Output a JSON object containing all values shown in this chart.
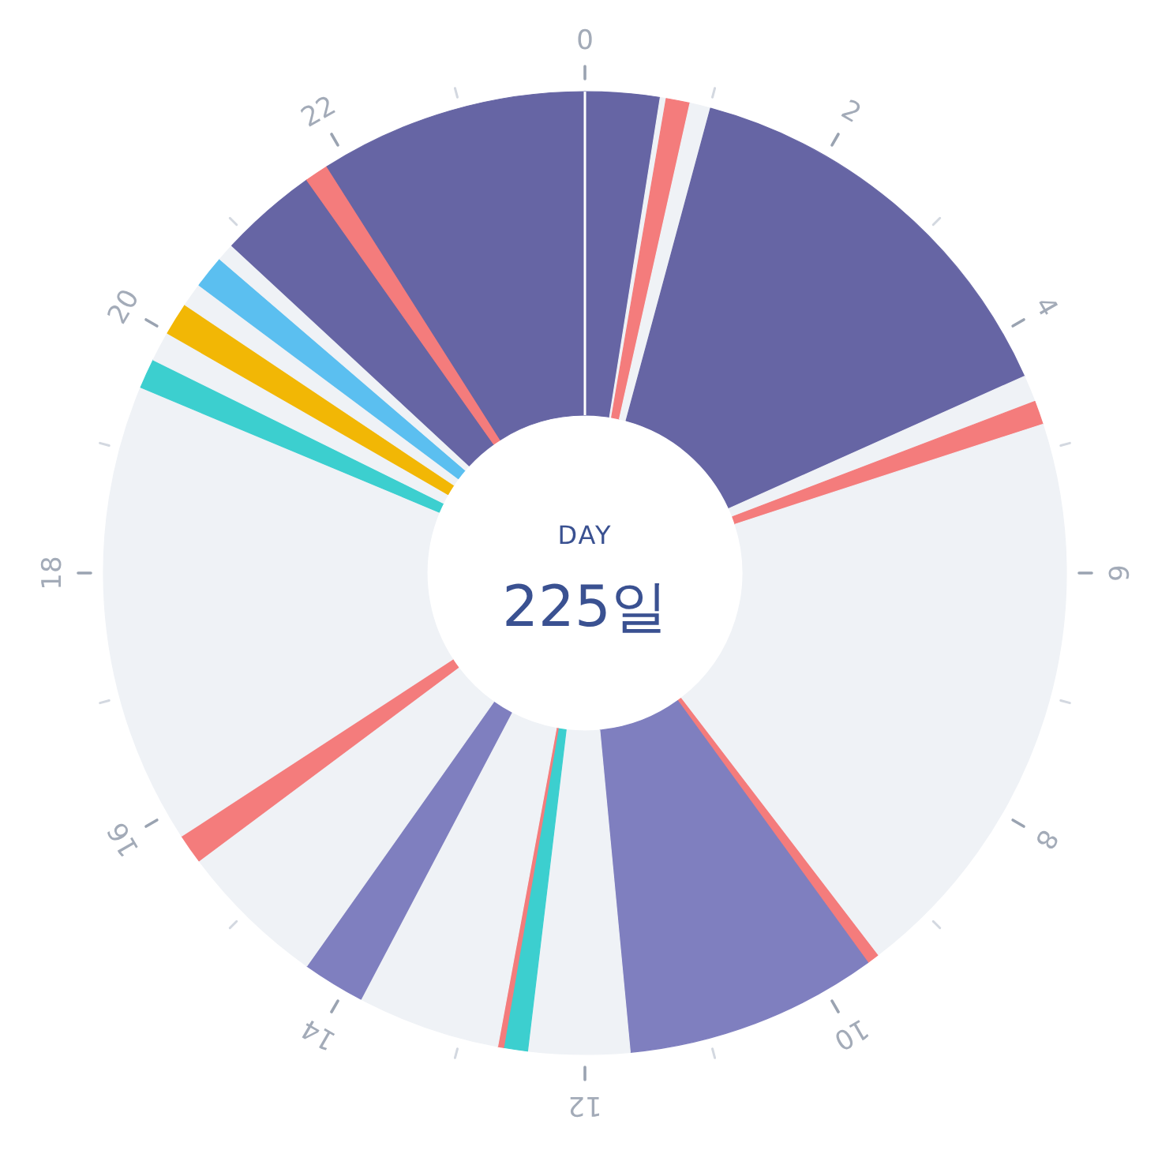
{
  "chart_data": {
    "type": "donut",
    "title": "DAY",
    "subtitle": "225일",
    "categories": [
      null,
      null,
      null,
      null,
      null,
      null,
      null,
      null,
      null,
      null,
      null,
      null,
      null,
      null,
      null,
      null,
      null,
      null,
      null,
      null,
      null,
      null,
      null,
      null,
      null,
      null,
      null
    ],
    "values": [
      2.5,
      0.2,
      0.8,
      0.7,
      14.1,
      0.9,
      0.8,
      19.6,
      0.4,
      8.5,
      3.4,
      0.8,
      0.2,
      4.8,
      2.1,
      5.0,
      1.0,
      15.5,
      1.0,
      1.0,
      1.1,
      0.8,
      1.1,
      0.6,
      3.3,
      0.8,
      9.0
    ],
    "colors": [
      "#6665a4",
      "#eff2f6",
      "#f47c7c",
      "#eff2f6",
      "#6665a4",
      "#eff2f6",
      "#f47c7c",
      "#eff2f6",
      "#f47c7c",
      "#7f7fbf",
      "#eff2f6",
      "#3ccfcf",
      "#f47c7c",
      "#eff2f6",
      "#7f7fbf",
      "#eff2f6",
      "#f47c7c",
      "#eff2f6",
      "#3ccfcf",
      "#eff2f6",
      "#f2b705",
      "#eff2f6",
      "#5bbff0",
      "#eff2f6",
      "#6665a4",
      "#f47c7c",
      "#6665a4"
    ],
    "annotations": [
      "0",
      "2",
      "4",
      "6",
      "8",
      "10",
      "12",
      "14",
      "16",
      "18",
      "20",
      "22"
    ]
  }
}
